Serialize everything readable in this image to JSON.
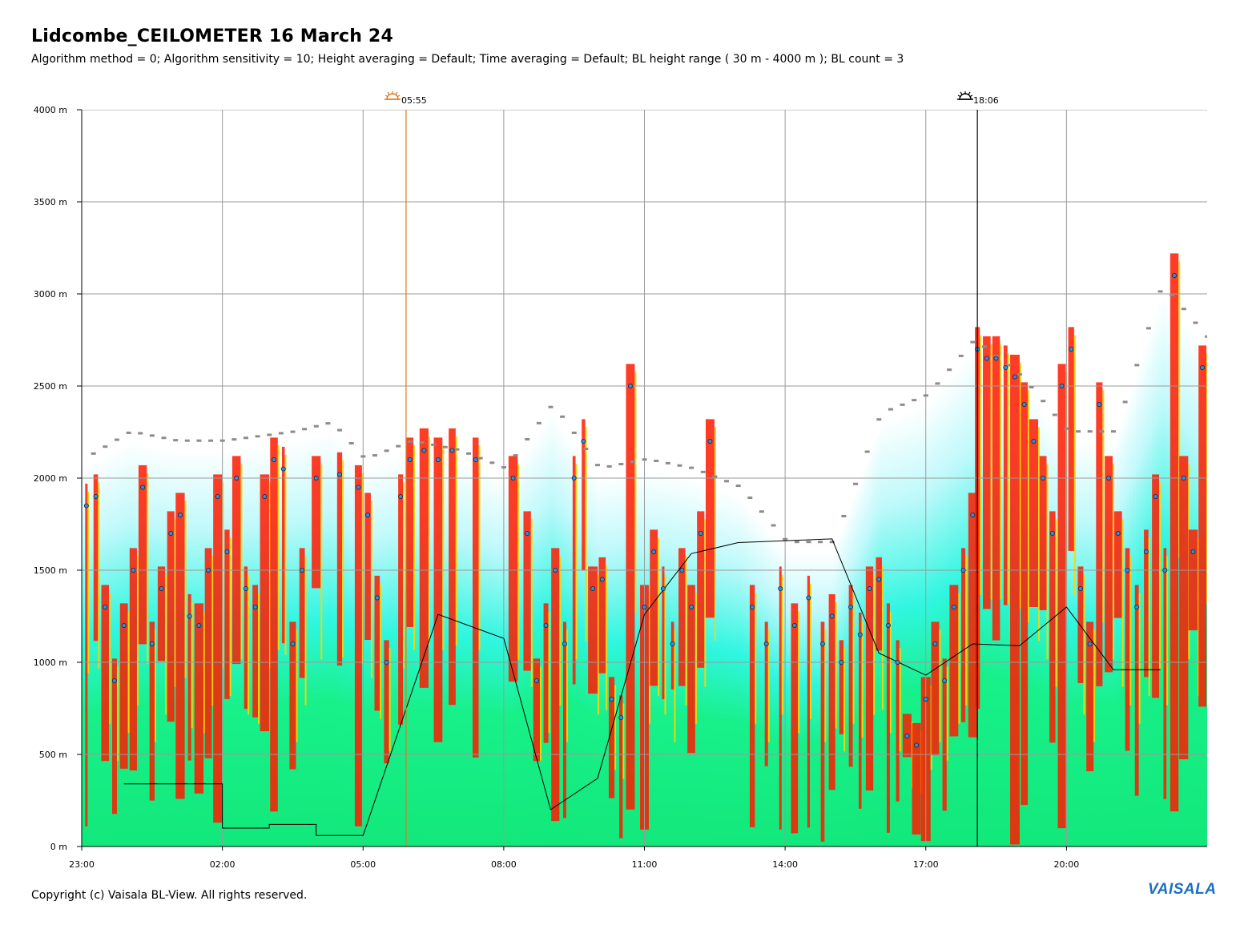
{
  "title": "Lidcombe_CEILOMETER 16 March 24",
  "subtitle": "Algorithm method = 0; Algorithm sensitivity = 10; Height averaging = Default; Time averaging = Default; BL height range ( 30 m - 4000 m ); BL count = 3",
  "copyright": "Copyright (c) Vaisala BL-View. All rights reserved.",
  "brand": "VAISALA",
  "markers": {
    "sunrise": {
      "time": "05:55",
      "icon": "sunrise-icon",
      "color": "#e07a1f"
    },
    "sunset": {
      "time": "18:06",
      "icon": "sunset-icon",
      "color": "#000000"
    }
  },
  "colors": {
    "low_backscatter": "#12e86a",
    "mid_backscatter": "#22eef5",
    "high_backscatter": "#ff1a00",
    "very_high": "#ffd400",
    "bl_height_points": "#2f8fd8",
    "cloud_base": "#8c8c8c",
    "bl_step_line": "#000000"
  },
  "chart_data": {
    "type": "heatmap",
    "title": "Lidcombe_CEILOMETER 16 March 24",
    "xlabel": "",
    "ylabel": "",
    "x_start_hour": 23,
    "x_range_hours": [
      0,
      24
    ],
    "ylim": [
      0,
      4000
    ],
    "x_ticks": [
      "23:00",
      "02:00",
      "05:00",
      "08:00",
      "11:00",
      "14:00",
      "17:00",
      "20:00"
    ],
    "y_ticks": [
      "0 m",
      "500 m",
      "1000 m",
      "1500 m",
      "2000 m",
      "2500 m",
      "3000 m",
      "3500 m",
      "4000 m"
    ],
    "grid": true,
    "sunrise_hours": 6.917,
    "sunset_hours": 19.1,
    "bl_height_step": [
      [
        0.9,
        340
      ],
      [
        1.0,
        340
      ],
      [
        3.0,
        340
      ],
      [
        3.0,
        100
      ],
      [
        4.0,
        100
      ],
      [
        4.0,
        120
      ],
      [
        5.0,
        120
      ],
      [
        5.0,
        60
      ],
      [
        6.0,
        60
      ],
      [
        7.6,
        1260
      ],
      [
        9.0,
        1130
      ],
      [
        10.0,
        200
      ],
      [
        11.0,
        370
      ],
      [
        12.0,
        1260
      ],
      [
        13.0,
        1590
      ],
      [
        14.0,
        1650
      ],
      [
        16.0,
        1670
      ],
      [
        17.0,
        1050
      ],
      [
        18.0,
        930
      ],
      [
        19.0,
        1100
      ],
      [
        20.0,
        1090
      ],
      [
        21.0,
        1300
      ],
      [
        22.0,
        960
      ],
      [
        23.0,
        960
      ]
    ],
    "residual_layer_top": [
      [
        0.0,
        2050
      ],
      [
        1.0,
        2200
      ],
      [
        2.0,
        2150
      ],
      [
        3.0,
        2150
      ],
      [
        4.5,
        2200
      ],
      [
        5.3,
        2250
      ],
      [
        6.0,
        2050
      ],
      [
        7.0,
        2150
      ],
      [
        8.0,
        2100
      ],
      [
        9.0,
        2000
      ],
      [
        10.0,
        2350
      ],
      [
        11.0,
        2000
      ],
      [
        12.0,
        2050
      ],
      [
        13.0,
        2000
      ],
      [
        14.0,
        1900
      ],
      [
        15.0,
        1600
      ],
      [
        16.0,
        1600
      ],
      [
        17.0,
        2300
      ],
      [
        18.0,
        2400
      ],
      [
        19.0,
        2700
      ],
      [
        20.0,
        2500
      ],
      [
        21.0,
        2200
      ],
      [
        22.0,
        2200
      ],
      [
        23.0,
        3000
      ],
      [
        24.0,
        2700
      ]
    ],
    "bl_height_points": [
      [
        0.1,
        1850
      ],
      [
        0.3,
        1900
      ],
      [
        0.5,
        1300
      ],
      [
        0.7,
        900
      ],
      [
        0.9,
        1200
      ],
      [
        1.1,
        1500
      ],
      [
        1.3,
        1950
      ],
      [
        1.5,
        1100
      ],
      [
        1.7,
        1400
      ],
      [
        1.9,
        1700
      ],
      [
        2.1,
        1800
      ],
      [
        2.3,
        1250
      ],
      [
        2.5,
        1200
      ],
      [
        2.7,
        1500
      ],
      [
        2.9,
        1900
      ],
      [
        3.1,
        1600
      ],
      [
        3.3,
        2000
      ],
      [
        3.5,
        1400
      ],
      [
        3.7,
        1300
      ],
      [
        3.9,
        1900
      ],
      [
        4.1,
        2100
      ],
      [
        4.3,
        2050
      ],
      [
        4.5,
        1100
      ],
      [
        4.7,
        1500
      ],
      [
        5.0,
        2000
      ],
      [
        5.5,
        2020
      ],
      [
        5.9,
        1950
      ],
      [
        6.1,
        1800
      ],
      [
        6.3,
        1350
      ],
      [
        6.5,
        1000
      ],
      [
        6.8,
        1900
      ],
      [
        7.0,
        2100
      ],
      [
        7.3,
        2150
      ],
      [
        7.6,
        2100
      ],
      [
        7.9,
        2150
      ],
      [
        8.4,
        2100
      ],
      [
        9.2,
        2000
      ],
      [
        9.5,
        1700
      ],
      [
        9.7,
        900
      ],
      [
        9.9,
        1200
      ],
      [
        10.1,
        1500
      ],
      [
        10.3,
        1100
      ],
      [
        10.5,
        2000
      ],
      [
        10.7,
        2200
      ],
      [
        10.9,
        1400
      ],
      [
        11.1,
        1450
      ],
      [
        11.3,
        800
      ],
      [
        11.5,
        700
      ],
      [
        11.7,
        2500
      ],
      [
        12.0,
        1300
      ],
      [
        12.2,
        1600
      ],
      [
        12.4,
        1400
      ],
      [
        12.6,
        1100
      ],
      [
        12.8,
        1500
      ],
      [
        13.0,
        1300
      ],
      [
        13.2,
        1700
      ],
      [
        13.4,
        2200
      ],
      [
        14.3,
        1300
      ],
      [
        14.6,
        1100
      ],
      [
        14.9,
        1400
      ],
      [
        15.2,
        1200
      ],
      [
        15.5,
        1350
      ],
      [
        15.8,
        1100
      ],
      [
        16.0,
        1250
      ],
      [
        16.2,
        1000
      ],
      [
        16.4,
        1300
      ],
      [
        16.6,
        1150
      ],
      [
        16.8,
        1400
      ],
      [
        17.0,
        1450
      ],
      [
        17.2,
        1200
      ],
      [
        17.4,
        1000
      ],
      [
        17.6,
        600
      ],
      [
        17.8,
        550
      ],
      [
        18.0,
        800
      ],
      [
        18.2,
        1100
      ],
      [
        18.4,
        900
      ],
      [
        18.6,
        1300
      ],
      [
        18.8,
        1500
      ],
      [
        19.0,
        1800
      ],
      [
        19.1,
        2700
      ],
      [
        19.3,
        2650
      ],
      [
        19.5,
        2650
      ],
      [
        19.7,
        2600
      ],
      [
        19.9,
        2550
      ],
      [
        20.1,
        2400
      ],
      [
        20.3,
        2200
      ],
      [
        20.5,
        2000
      ],
      [
        20.7,
        1700
      ],
      [
        20.9,
        2500
      ],
      [
        21.1,
        2700
      ],
      [
        21.3,
        1400
      ],
      [
        21.5,
        1100
      ],
      [
        21.7,
        2400
      ],
      [
        21.9,
        2000
      ],
      [
        22.1,
        1700
      ],
      [
        22.3,
        1500
      ],
      [
        22.5,
        1300
      ],
      [
        22.7,
        1600
      ],
      [
        22.9,
        1900
      ],
      [
        23.1,
        1500
      ],
      [
        23.3,
        3100
      ],
      [
        23.5,
        2000
      ],
      [
        23.7,
        1600
      ],
      [
        23.9,
        2600
      ]
    ]
  }
}
